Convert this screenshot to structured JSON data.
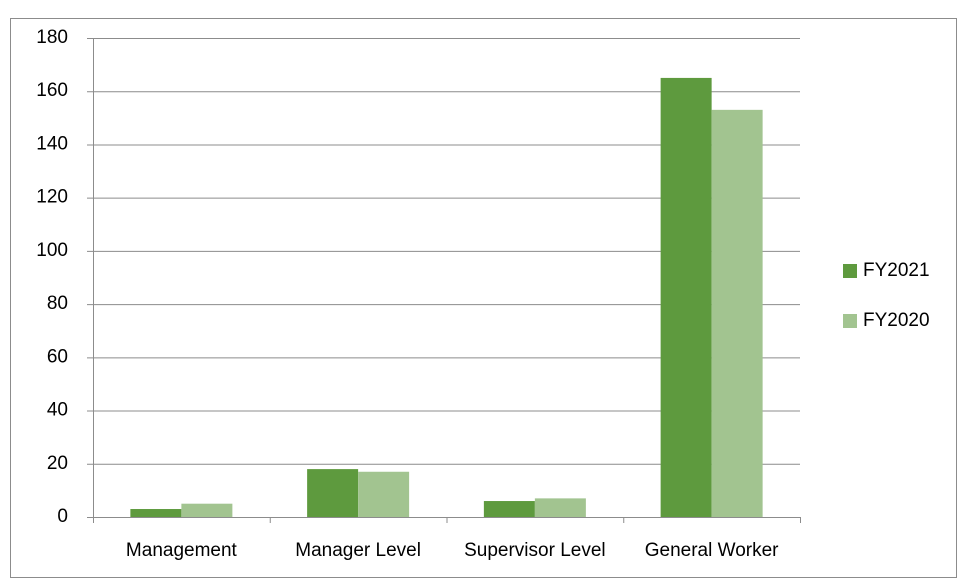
{
  "chart_data": {
    "type": "bar",
    "categories": [
      "Management",
      "Manager Level",
      "Supervisor Level",
      "General Worker"
    ],
    "series": [
      {
        "name": "FY2021",
        "color": "#5e9a3e",
        "values": [
          3,
          18,
          6,
          165
        ]
      },
      {
        "name": "FY2020",
        "color": "#a2c490",
        "values": [
          5,
          17,
          7,
          153
        ]
      }
    ],
    "ylim": [
      0,
      180
    ],
    "yticks": [
      0,
      20,
      40,
      60,
      80,
      100,
      120,
      140,
      160,
      180
    ],
    "grid": true,
    "legend": "right"
  }
}
